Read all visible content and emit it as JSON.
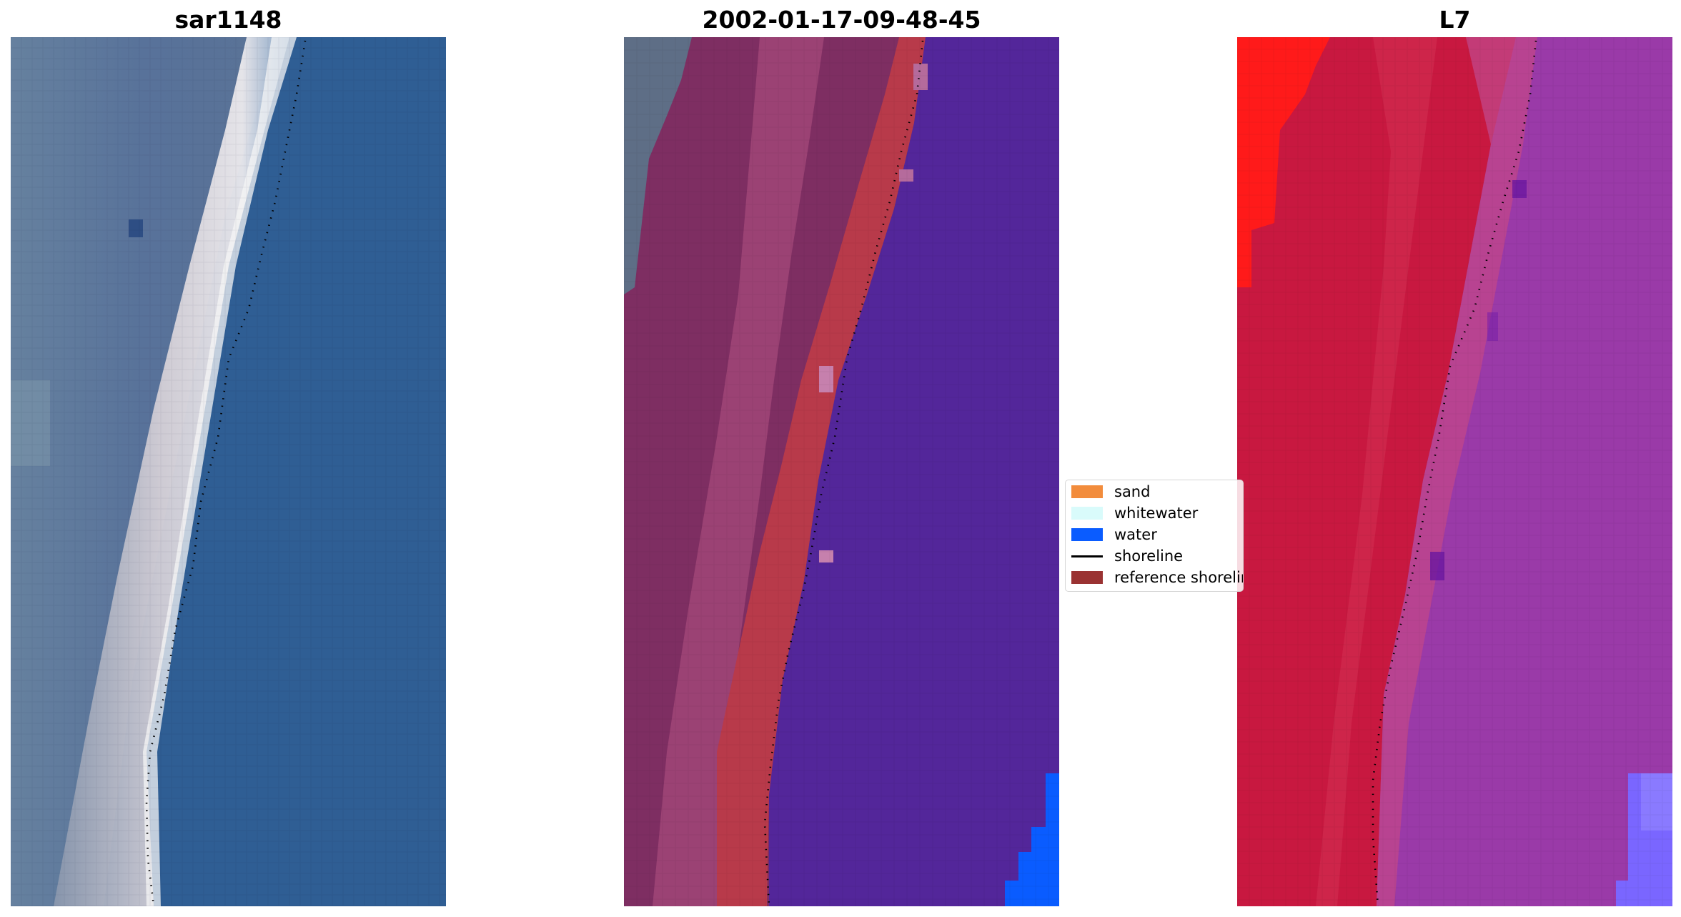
{
  "panels": {
    "left": {
      "title": "sar1148"
    },
    "middle": {
      "title": "2002-01-17-09-48-45"
    },
    "right": {
      "title": "L7"
    }
  },
  "legend": {
    "items": [
      {
        "label": "sand",
        "color": "#f28c3c",
        "kind": "patch"
      },
      {
        "label": "whitewater",
        "color": "#d9fbfb",
        "kind": "patch"
      },
      {
        "label": "water",
        "color": "#0a5cff",
        "kind": "patch"
      },
      {
        "label": "shoreline",
        "color": "#000000",
        "kind": "line"
      },
      {
        "label": "reference shoreline",
        "color": "#9a3232",
        "kind": "patch"
      }
    ]
  },
  "colors": {
    "ocean_blue": "#2f5e94",
    "land_grey_blue": "#5a7496",
    "beach_white": "#e8e4e6",
    "class_purple": "#53269a",
    "class_red": "#b83a4a",
    "class_maroon": "#7e2e62",
    "l7_red": "#c81840",
    "l7_purple": "#9a3aa8",
    "l7_bright_red": "#ff1a1a",
    "water_blue": "#0a5cff"
  }
}
